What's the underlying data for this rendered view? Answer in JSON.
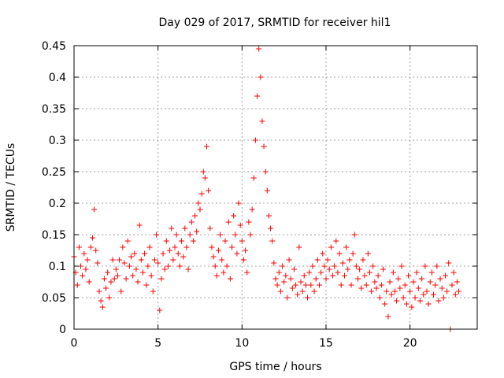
{
  "chart_data": {
    "type": "scatter",
    "title": "Day 029 of 2017, SRMTID for receiver hil1",
    "xlabel": "GPS time / hours",
    "ylabel": "SRMTID / TECUs",
    "xlim": [
      0,
      24
    ],
    "ylim": [
      0,
      0.45
    ],
    "xticks": [
      0,
      5,
      10,
      15,
      20
    ],
    "yticks": [
      0,
      0.05,
      0.1,
      0.15,
      0.2,
      0.25,
      0.3,
      0.35,
      0.4,
      0.45
    ],
    "xtick_labels": [
      "0",
      "5",
      "10",
      "15",
      "20"
    ],
    "ytick_labels": [
      "0",
      "0.05",
      "0.1",
      "0.15",
      "0.2",
      "0.25",
      "0.3",
      "0.35",
      "0.4",
      "0.45"
    ],
    "grid": true,
    "marker": "+",
    "color": "#ff0000",
    "series": [
      {
        "points": [
          [
            0.0,
            0.115
          ],
          [
            0.1,
            0.09
          ],
          [
            0.2,
            0.07
          ],
          [
            0.3,
            0.13
          ],
          [
            0.4,
            0.1
          ],
          [
            0.5,
            0.085
          ],
          [
            0.6,
            0.12
          ],
          [
            0.7,
            0.095
          ],
          [
            0.8,
            0.11
          ],
          [
            0.9,
            0.075
          ],
          [
            1.0,
            0.13
          ],
          [
            1.1,
            0.145
          ],
          [
            1.2,
            0.19
          ],
          [
            1.3,
            0.125
          ],
          [
            1.4,
            0.105
          ],
          [
            1.5,
            0.06
          ],
          [
            1.6,
            0.045
          ],
          [
            1.7,
            0.035
          ],
          [
            1.8,
            0.08
          ],
          [
            1.9,
            0.065
          ],
          [
            2.0,
            0.09
          ],
          [
            2.1,
            0.05
          ],
          [
            2.2,
            0.075
          ],
          [
            2.3,
            0.11
          ],
          [
            2.4,
            0.08
          ],
          [
            2.5,
            0.095
          ],
          [
            2.6,
            0.085
          ],
          [
            2.7,
            0.11
          ],
          [
            2.8,
            0.06
          ],
          [
            2.9,
            0.13
          ],
          [
            3.0,
            0.105
          ],
          [
            3.1,
            0.08
          ],
          [
            3.2,
            0.14
          ],
          [
            3.3,
            0.1
          ],
          [
            3.4,
            0.115
          ],
          [
            3.5,
            0.085
          ],
          [
            3.6,
            0.12
          ],
          [
            3.7,
            0.095
          ],
          [
            3.8,
            0.075
          ],
          [
            3.9,
            0.165
          ],
          [
            4.0,
            0.11
          ],
          [
            4.1,
            0.09
          ],
          [
            4.2,
            0.12
          ],
          [
            4.3,
            0.07
          ],
          [
            4.4,
            0.1
          ],
          [
            4.5,
            0.13
          ],
          [
            4.6,
            0.085
          ],
          [
            4.7,
            0.06
          ],
          [
            4.8,
            0.11
          ],
          [
            4.9,
            0.15
          ],
          [
            5.0,
            0.105
          ],
          [
            5.1,
            0.03
          ],
          [
            5.2,
            0.08
          ],
          [
            5.3,
            0.12
          ],
          [
            5.4,
            0.095
          ],
          [
            5.5,
            0.14
          ],
          [
            5.6,
            0.1
          ],
          [
            5.7,
            0.125
          ],
          [
            5.8,
            0.16
          ],
          [
            5.9,
            0.11
          ],
          [
            6.0,
            0.13
          ],
          [
            6.1,
            0.15
          ],
          [
            6.2,
            0.12
          ],
          [
            6.3,
            0.1
          ],
          [
            6.4,
            0.14
          ],
          [
            6.5,
            0.115
          ],
          [
            6.6,
            0.16
          ],
          [
            6.7,
            0.13
          ],
          [
            6.8,
            0.095
          ],
          [
            6.9,
            0.15
          ],
          [
            7.0,
            0.17
          ],
          [
            7.1,
            0.14
          ],
          [
            7.2,
            0.18
          ],
          [
            7.3,
            0.155
          ],
          [
            7.4,
            0.2
          ],
          [
            7.5,
            0.19
          ],
          [
            7.6,
            0.215
          ],
          [
            7.7,
            0.25
          ],
          [
            7.8,
            0.24
          ],
          [
            7.9,
            0.29
          ],
          [
            8.0,
            0.22
          ],
          [
            8.1,
            0.16
          ],
          [
            8.2,
            0.13
          ],
          [
            8.3,
            0.115
          ],
          [
            8.4,
            0.1
          ],
          [
            8.5,
            0.085
          ],
          [
            8.6,
            0.125
          ],
          [
            8.7,
            0.15
          ],
          [
            8.8,
            0.11
          ],
          [
            8.9,
            0.09
          ],
          [
            9.0,
            0.14
          ],
          [
            9.1,
            0.1
          ],
          [
            9.2,
            0.17
          ],
          [
            9.3,
            0.08
          ],
          [
            9.4,
            0.13
          ],
          [
            9.5,
            0.18
          ],
          [
            9.6,
            0.15
          ],
          [
            9.7,
            0.12
          ],
          [
            9.8,
            0.2
          ],
          [
            9.9,
            0.165
          ],
          [
            10.0,
            0.14
          ],
          [
            10.1,
            0.11
          ],
          [
            10.2,
            0.125
          ],
          [
            10.3,
            0.09
          ],
          [
            10.4,
            0.17
          ],
          [
            10.5,
            0.15
          ],
          [
            10.6,
            0.19
          ],
          [
            10.7,
            0.24
          ],
          [
            10.8,
            0.3
          ],
          [
            10.9,
            0.37
          ],
          [
            11.0,
            0.445
          ],
          [
            11.1,
            0.4
          ],
          [
            11.2,
            0.33
          ],
          [
            11.3,
            0.29
          ],
          [
            11.4,
            0.25
          ],
          [
            11.5,
            0.22
          ],
          [
            11.6,
            0.18
          ],
          [
            11.7,
            0.16
          ],
          [
            11.8,
            0.14
          ],
          [
            11.9,
            0.105
          ],
          [
            12.0,
            0.08
          ],
          [
            12.1,
            0.07
          ],
          [
            12.2,
            0.09
          ],
          [
            12.3,
            0.06
          ],
          [
            12.4,
            0.1
          ],
          [
            12.5,
            0.075
          ],
          [
            12.6,
            0.085
          ],
          [
            12.7,
            0.05
          ],
          [
            12.8,
            0.11
          ],
          [
            12.9,
            0.08
          ],
          [
            13.0,
            0.065
          ],
          [
            13.1,
            0.095
          ],
          [
            13.2,
            0.07
          ],
          [
            13.3,
            0.055
          ],
          [
            13.4,
            0.13
          ],
          [
            13.5,
            0.075
          ],
          [
            13.6,
            0.06
          ],
          [
            13.7,
            0.085
          ],
          [
            13.8,
            0.07
          ],
          [
            13.9,
            0.05
          ],
          [
            14.0,
            0.09
          ],
          [
            14.1,
            0.07
          ],
          [
            14.2,
            0.1
          ],
          [
            14.3,
            0.06
          ],
          [
            14.4,
            0.08
          ],
          [
            14.5,
            0.11
          ],
          [
            14.6,
            0.07
          ],
          [
            14.7,
            0.09
          ],
          [
            14.8,
            0.12
          ],
          [
            14.9,
            0.1
          ],
          [
            15.0,
            0.08
          ],
          [
            15.1,
            0.11
          ],
          [
            15.2,
            0.095
          ],
          [
            15.3,
            0.13
          ],
          [
            15.4,
            0.085
          ],
          [
            15.5,
            0.1
          ],
          [
            15.6,
            0.14
          ],
          [
            15.7,
            0.09
          ],
          [
            15.8,
            0.12
          ],
          [
            15.9,
            0.07
          ],
          [
            16.0,
            0.105
          ],
          [
            16.1,
            0.085
          ],
          [
            16.2,
            0.13
          ],
          [
            16.3,
            0.095
          ],
          [
            16.4,
            0.11
          ],
          [
            16.5,
            0.07
          ],
          [
            16.6,
            0.12
          ],
          [
            16.7,
            0.15
          ],
          [
            16.8,
            0.1
          ],
          [
            16.9,
            0.08
          ],
          [
            17.0,
            0.095
          ],
          [
            17.1,
            0.065
          ],
          [
            17.2,
            0.11
          ],
          [
            17.3,
            0.085
          ],
          [
            17.4,
            0.07
          ],
          [
            17.5,
            0.12
          ],
          [
            17.6,
            0.09
          ],
          [
            17.7,
            0.06
          ],
          [
            17.8,
            0.1
          ],
          [
            17.9,
            0.075
          ],
          [
            18.0,
            0.065
          ],
          [
            18.1,
            0.085
          ],
          [
            18.2,
            0.05
          ],
          [
            18.3,
            0.07
          ],
          [
            18.4,
            0.095
          ],
          [
            18.5,
            0.04
          ],
          [
            18.6,
            0.06
          ],
          [
            18.7,
            0.02
          ],
          [
            18.8,
            0.075
          ],
          [
            18.9,
            0.055
          ],
          [
            19.0,
            0.09
          ],
          [
            19.1,
            0.06
          ],
          [
            19.2,
            0.045
          ],
          [
            19.3,
            0.08
          ],
          [
            19.4,
            0.065
          ],
          [
            19.5,
            0.1
          ],
          [
            19.6,
            0.05
          ],
          [
            19.7,
            0.07
          ],
          [
            19.8,
            0.04
          ],
          [
            19.9,
            0.085
          ],
          [
            20.0,
            0.06
          ],
          [
            20.1,
            0.035
          ],
          [
            20.2,
            0.075
          ],
          [
            20.3,
            0.05
          ],
          [
            20.4,
            0.09
          ],
          [
            20.5,
            0.065
          ],
          [
            20.6,
            0.045
          ],
          [
            20.7,
            0.08
          ],
          [
            20.8,
            0.055
          ],
          [
            20.9,
            0.1
          ],
          [
            21.0,
            0.06
          ],
          [
            21.1,
            0.04
          ],
          [
            21.2,
            0.075
          ],
          [
            21.3,
            0.09
          ],
          [
            21.4,
            0.055
          ],
          [
            21.5,
            0.07
          ],
          [
            21.6,
            0.1
          ],
          [
            21.7,
            0.045
          ],
          [
            21.8,
            0.08
          ],
          [
            21.9,
            0.065
          ],
          [
            22.0,
            0.05
          ],
          [
            22.1,
            0.085
          ],
          [
            22.2,
            0.06
          ],
          [
            22.3,
            0.105
          ],
          [
            22.4,
            0.0
          ],
          [
            22.5,
            0.07
          ],
          [
            22.6,
            0.09
          ],
          [
            22.7,
            0.055
          ],
          [
            22.8,
            0.075
          ],
          [
            22.9,
            0.06
          ]
        ]
      }
    ]
  }
}
